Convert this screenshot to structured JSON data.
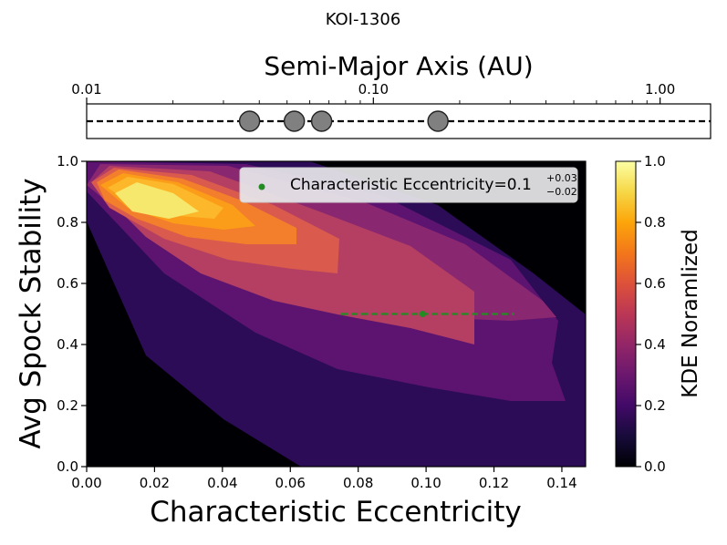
{
  "chart_data": [
    {
      "type": "scatter",
      "name": "orbit-strip",
      "suptitle": "KOI-1306",
      "title": "Semi-Major Axis (AU)",
      "xscale": "log",
      "xlim": [
        0.01,
        1.5
      ],
      "ticks": [
        {
          "value": 0.01,
          "label": "0.01"
        },
        {
          "value": 0.1,
          "label": "0.10"
        },
        {
          "value": 1.0,
          "label": "1.00"
        }
      ],
      "planets_au": [
        0.037,
        0.053,
        0.066,
        0.168
      ],
      "marker_color": "#808080"
    },
    {
      "type": "heatmap",
      "name": "kde-contour",
      "xlabel": "Characteristic Eccentricity",
      "ylabel": "Avg Spock Stability",
      "xlim": [
        0.0,
        0.147
      ],
      "ylim": [
        0.0,
        1.0
      ],
      "xticks": [
        "0.00",
        "0.02",
        "0.04",
        "0.06",
        "0.08",
        "0.10",
        "0.12",
        "0.14"
      ],
      "yticks": [
        "0.0",
        "0.2",
        "0.4",
        "0.6",
        "0.8",
        "1.0"
      ],
      "kde_peak": {
        "x": 0.022,
        "y": 0.85
      },
      "point": {
        "x": 0.099,
        "y": 0.5,
        "err_low": 0.024,
        "err_high": 0.027
      },
      "point_color": "#228b22",
      "legend": {
        "label": "Characteristic Eccentricity=0.1",
        "sup": "+0.03",
        "sub": "−0.02",
        "location": "top-right"
      },
      "colorbar": {
        "label": "KDE Noramlized",
        "ticks": [
          "0.0",
          "0.2",
          "0.4",
          "0.6",
          "0.8",
          "1.0"
        ],
        "range": [
          0.0,
          1.0
        ]
      },
      "levels": [
        {
          "level": 0.0,
          "color": "#000004"
        },
        {
          "level": 0.1,
          "color": "#2c0b57"
        },
        {
          "level": 0.2,
          "color": "#5c1470"
        },
        {
          "level": 0.3,
          "color": "#892770"
        },
        {
          "level": 0.4,
          "color": "#b43f62"
        },
        {
          "level": 0.5,
          "color": "#da5a4d"
        },
        {
          "level": 0.6,
          "color": "#f37e2c"
        },
        {
          "level": 0.7,
          "color": "#fb9d19"
        },
        {
          "level": 0.8,
          "color": "#fdb72a"
        },
        {
          "level": 0.9,
          "color": "#f6e86c"
        }
      ]
    }
  ]
}
